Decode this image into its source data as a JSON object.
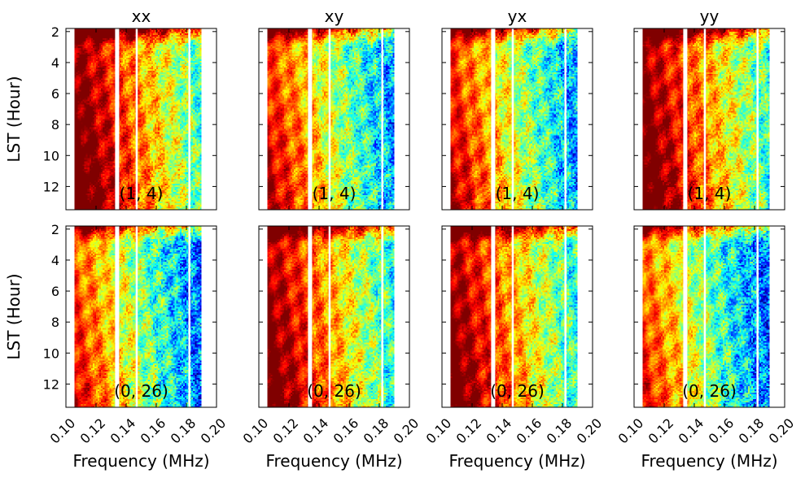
{
  "chart_data": {
    "type": "heatmap",
    "layout": {
      "rows": 2,
      "cols": 4
    },
    "colormap": "jet",
    "colors": {
      "low": "#00007f",
      "mid": "#7fff7f",
      "high": "#7f0000",
      "gap": "#ffffff"
    },
    "xlabel": "Frequency (MHz)",
    "ylabel": "LST (Hour)",
    "xlim": [
      0.1,
      0.2
    ],
    "ylim": [
      13.5,
      1.8
    ],
    "y_inverted": true,
    "xticks": [
      0.1,
      0.12,
      0.14,
      0.16,
      0.18,
      0.2
    ],
    "xtick_labels": [
      "0.10",
      "0.12",
      "0.14",
      "0.16",
      "0.18",
      "0.20"
    ],
    "yticks": [
      2,
      4,
      6,
      8,
      10,
      12
    ],
    "ytick_labels": [
      "2",
      "4",
      "6",
      "8",
      "10",
      "12"
    ],
    "data_freq_range": [
      0.106,
      0.19
    ],
    "flagged_channels_mhz": [
      0.134,
      0.147,
      0.182
    ],
    "column_titles": [
      "xx",
      "xy",
      "yx",
      "yy"
    ],
    "row_labels": [
      "(1, 4)",
      "(0, 26)"
    ],
    "panels": [
      {
        "row": 0,
        "col": 0,
        "title": "xx",
        "baseline": "(1, 4)",
        "mean_level": 0.62,
        "noise": 0.18
      },
      {
        "row": 0,
        "col": 1,
        "title": "xy",
        "baseline": "(1, 4)",
        "mean_level": 0.45,
        "noise": 0.22
      },
      {
        "row": 0,
        "col": 2,
        "title": "yx",
        "baseline": "(1, 4)",
        "mean_level": 0.45,
        "noise": 0.22
      },
      {
        "row": 0,
        "col": 3,
        "title": "yy",
        "baseline": "(1, 4)",
        "mean_level": 0.6,
        "noise": 0.18
      },
      {
        "row": 1,
        "col": 0,
        "title": "xx",
        "baseline": "(0, 26)",
        "mean_level": 0.4,
        "noise": 0.24
      },
      {
        "row": 1,
        "col": 1,
        "title": "xy",
        "baseline": "(0, 26)",
        "mean_level": 0.58,
        "noise": 0.18
      },
      {
        "row": 1,
        "col": 2,
        "title": "yx",
        "baseline": "(0, 26)",
        "mean_level": 0.58,
        "noise": 0.18
      },
      {
        "row": 1,
        "col": 3,
        "title": "yy",
        "baseline": "(0, 26)",
        "mean_level": 0.38,
        "noise": 0.24
      }
    ]
  }
}
